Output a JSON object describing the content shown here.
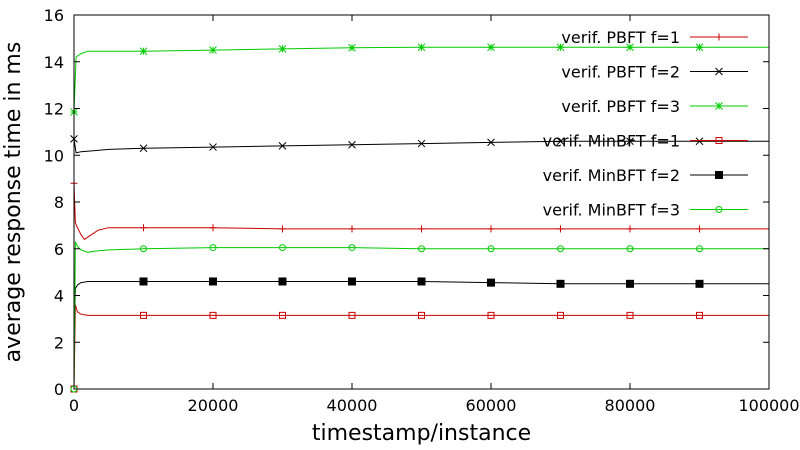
{
  "chart_data": {
    "type": "line",
    "xlabel": "timestamp/instance",
    "ylabel": "average response time in ms",
    "xlim": [
      0,
      100000
    ],
    "ylim": [
      0,
      16
    ],
    "xticks": [
      0,
      20000,
      40000,
      60000,
      80000,
      100000
    ],
    "yticks": [
      0,
      2,
      4,
      6,
      8,
      10,
      12,
      14,
      16
    ],
    "grid": false,
    "legend_position": "top-right",
    "series": [
      {
        "name": "verif. PBFT f=1",
        "color": "#cc0000",
        "marker": "plus",
        "x": [
          0,
          200,
          500,
          1000,
          1500,
          2500,
          3500,
          5000,
          10000,
          20000,
          30000,
          40000,
          50000,
          60000,
          70000,
          80000,
          90000,
          100000
        ],
        "y": [
          8.8,
          7.1,
          6.9,
          6.6,
          6.4,
          6.6,
          6.8,
          6.9,
          6.9,
          6.9,
          6.85,
          6.85,
          6.85,
          6.85,
          6.85,
          6.85,
          6.85,
          6.85
        ],
        "marker_x": [
          0,
          10000,
          20000,
          30000,
          40000,
          50000,
          60000,
          70000,
          80000,
          90000
        ]
      },
      {
        "name": "verif. PBFT f=2",
        "color": "#000000",
        "marker": "cross",
        "x": [
          0,
          300,
          1000,
          3000,
          5000,
          10000,
          20000,
          30000,
          40000,
          50000,
          60000,
          70000,
          80000,
          90000,
          100000
        ],
        "y": [
          10.7,
          10.1,
          10.15,
          10.2,
          10.25,
          10.3,
          10.35,
          10.4,
          10.45,
          10.5,
          10.55,
          10.6,
          10.6,
          10.6,
          10.6
        ],
        "marker_x": [
          0,
          10000,
          20000,
          30000,
          40000,
          50000,
          60000,
          70000,
          80000,
          90000
        ]
      },
      {
        "name": "verif. PBFT f=3",
        "color": "#00cc00",
        "marker": "star",
        "x": [
          0,
          300,
          1000,
          2000,
          3000,
          5000,
          10000,
          20000,
          30000,
          40000,
          50000,
          60000,
          70000,
          80000,
          90000,
          100000
        ],
        "y": [
          11.85,
          14.2,
          14.35,
          14.45,
          14.45,
          14.45,
          14.45,
          14.5,
          14.55,
          14.6,
          14.62,
          14.62,
          14.62,
          14.62,
          14.62,
          14.62
        ],
        "marker_x": [
          0,
          10000,
          20000,
          30000,
          40000,
          50000,
          60000,
          70000,
          80000,
          90000
        ]
      },
      {
        "name": "verif. MinBFT f=1",
        "color": "#cc0000",
        "marker": "square-open",
        "x": [
          0,
          200,
          500,
          1000,
          2000,
          5000,
          10000,
          20000,
          30000,
          40000,
          50000,
          60000,
          70000,
          80000,
          90000,
          100000
        ],
        "y": [
          0.0,
          3.6,
          3.3,
          3.2,
          3.15,
          3.15,
          3.15,
          3.15,
          3.15,
          3.15,
          3.15,
          3.15,
          3.15,
          3.15,
          3.15,
          3.15
        ],
        "marker_x": [
          0,
          10000,
          20000,
          30000,
          40000,
          50000,
          60000,
          70000,
          80000,
          90000
        ]
      },
      {
        "name": "verif. MinBFT f=2",
        "color": "#000000",
        "marker": "square-filled",
        "x": [
          0,
          200,
          500,
          1000,
          2000,
          5000,
          10000,
          20000,
          30000,
          40000,
          50000,
          60000,
          70000,
          80000,
          90000,
          100000
        ],
        "y": [
          2.2,
          4.3,
          4.45,
          4.55,
          4.6,
          4.6,
          4.6,
          4.6,
          4.6,
          4.6,
          4.6,
          4.55,
          4.5,
          4.5,
          4.5,
          4.5
        ],
        "marker_x": [
          10000,
          20000,
          30000,
          40000,
          50000,
          60000,
          70000,
          80000,
          90000
        ]
      },
      {
        "name": "verif. MinBFT f=3",
        "color": "#00cc00",
        "marker": "circle-open",
        "x": [
          0,
          200,
          500,
          1000,
          2000,
          3000,
          5000,
          10000,
          20000,
          30000,
          40000,
          50000,
          60000,
          70000,
          80000,
          90000,
          100000
        ],
        "y": [
          0.0,
          6.3,
          6.1,
          5.95,
          5.85,
          5.9,
          5.95,
          6.0,
          6.05,
          6.05,
          6.05,
          6.0,
          6.0,
          6.0,
          6.0,
          6.0,
          6.0
        ],
        "marker_x": [
          0,
          10000,
          20000,
          30000,
          40000,
          50000,
          60000,
          70000,
          80000,
          90000
        ]
      }
    ]
  }
}
